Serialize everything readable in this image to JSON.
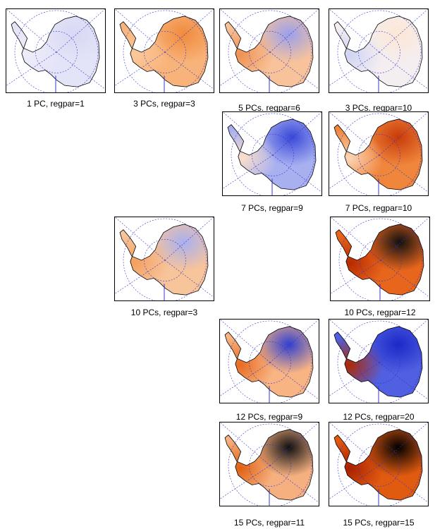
{
  "panels": [
    {
      "caption": "1 PC, regpar=1",
      "base": "#e4e4f8",
      "blob1": "#d8d8f4",
      "blob2": "#ececfa"
    },
    {
      "caption": "3 PCs, regpar=3",
      "base": "#f8b37a",
      "blob1": "#f08a3c",
      "blob2": "#fbc89a"
    },
    {
      "caption": "5 PCs. regpar=6",
      "base": "#f8c39a",
      "blob1": "#9aa0ec",
      "blob2": "#f09050"
    },
    {
      "caption": "3 PCs. regpar=10",
      "base": "#f4eef0",
      "blob1": "#fde7d4",
      "blob2": "#d0d4f4"
    },
    {
      "caption": "7 PCs, regpar=9",
      "base": "#a8b0f0",
      "blob1": "#3848d8",
      "blob2": "#fde0c8"
    },
    {
      "caption": "7 PCs, regpar=10",
      "base": "#f0863c",
      "blob1": "#c83a08",
      "blob2": "#fbd6b8"
    },
    {
      "caption": "10 PCs, regpar=3",
      "base": "#f8c49a",
      "blob1": "#a8b0f0",
      "blob2": "#f4a060"
    },
    {
      "caption": "10 PCs, regpar=12",
      "base": "#e8661c",
      "blob1": "#101010",
      "blob2": "#b82a00"
    },
    {
      "caption": "12 PCs, regpar=9",
      "base": "#f8b482",
      "blob1": "#3040d0",
      "blob2": "#e86a20"
    },
    {
      "caption": "12 PCs, regpar=20",
      "base": "#5060e0",
      "blob1": "#1c28c8",
      "blob2": "#b02800"
    },
    {
      "caption": "15 PCs, regpar=11",
      "base": "#f6b080",
      "blob1": "#101010",
      "blob2": "#e06010"
    },
    {
      "caption": "15 PCs, regpar=15",
      "base": "#e05a10",
      "blob1": "#000000",
      "blob2": "#a82000"
    }
  ]
}
